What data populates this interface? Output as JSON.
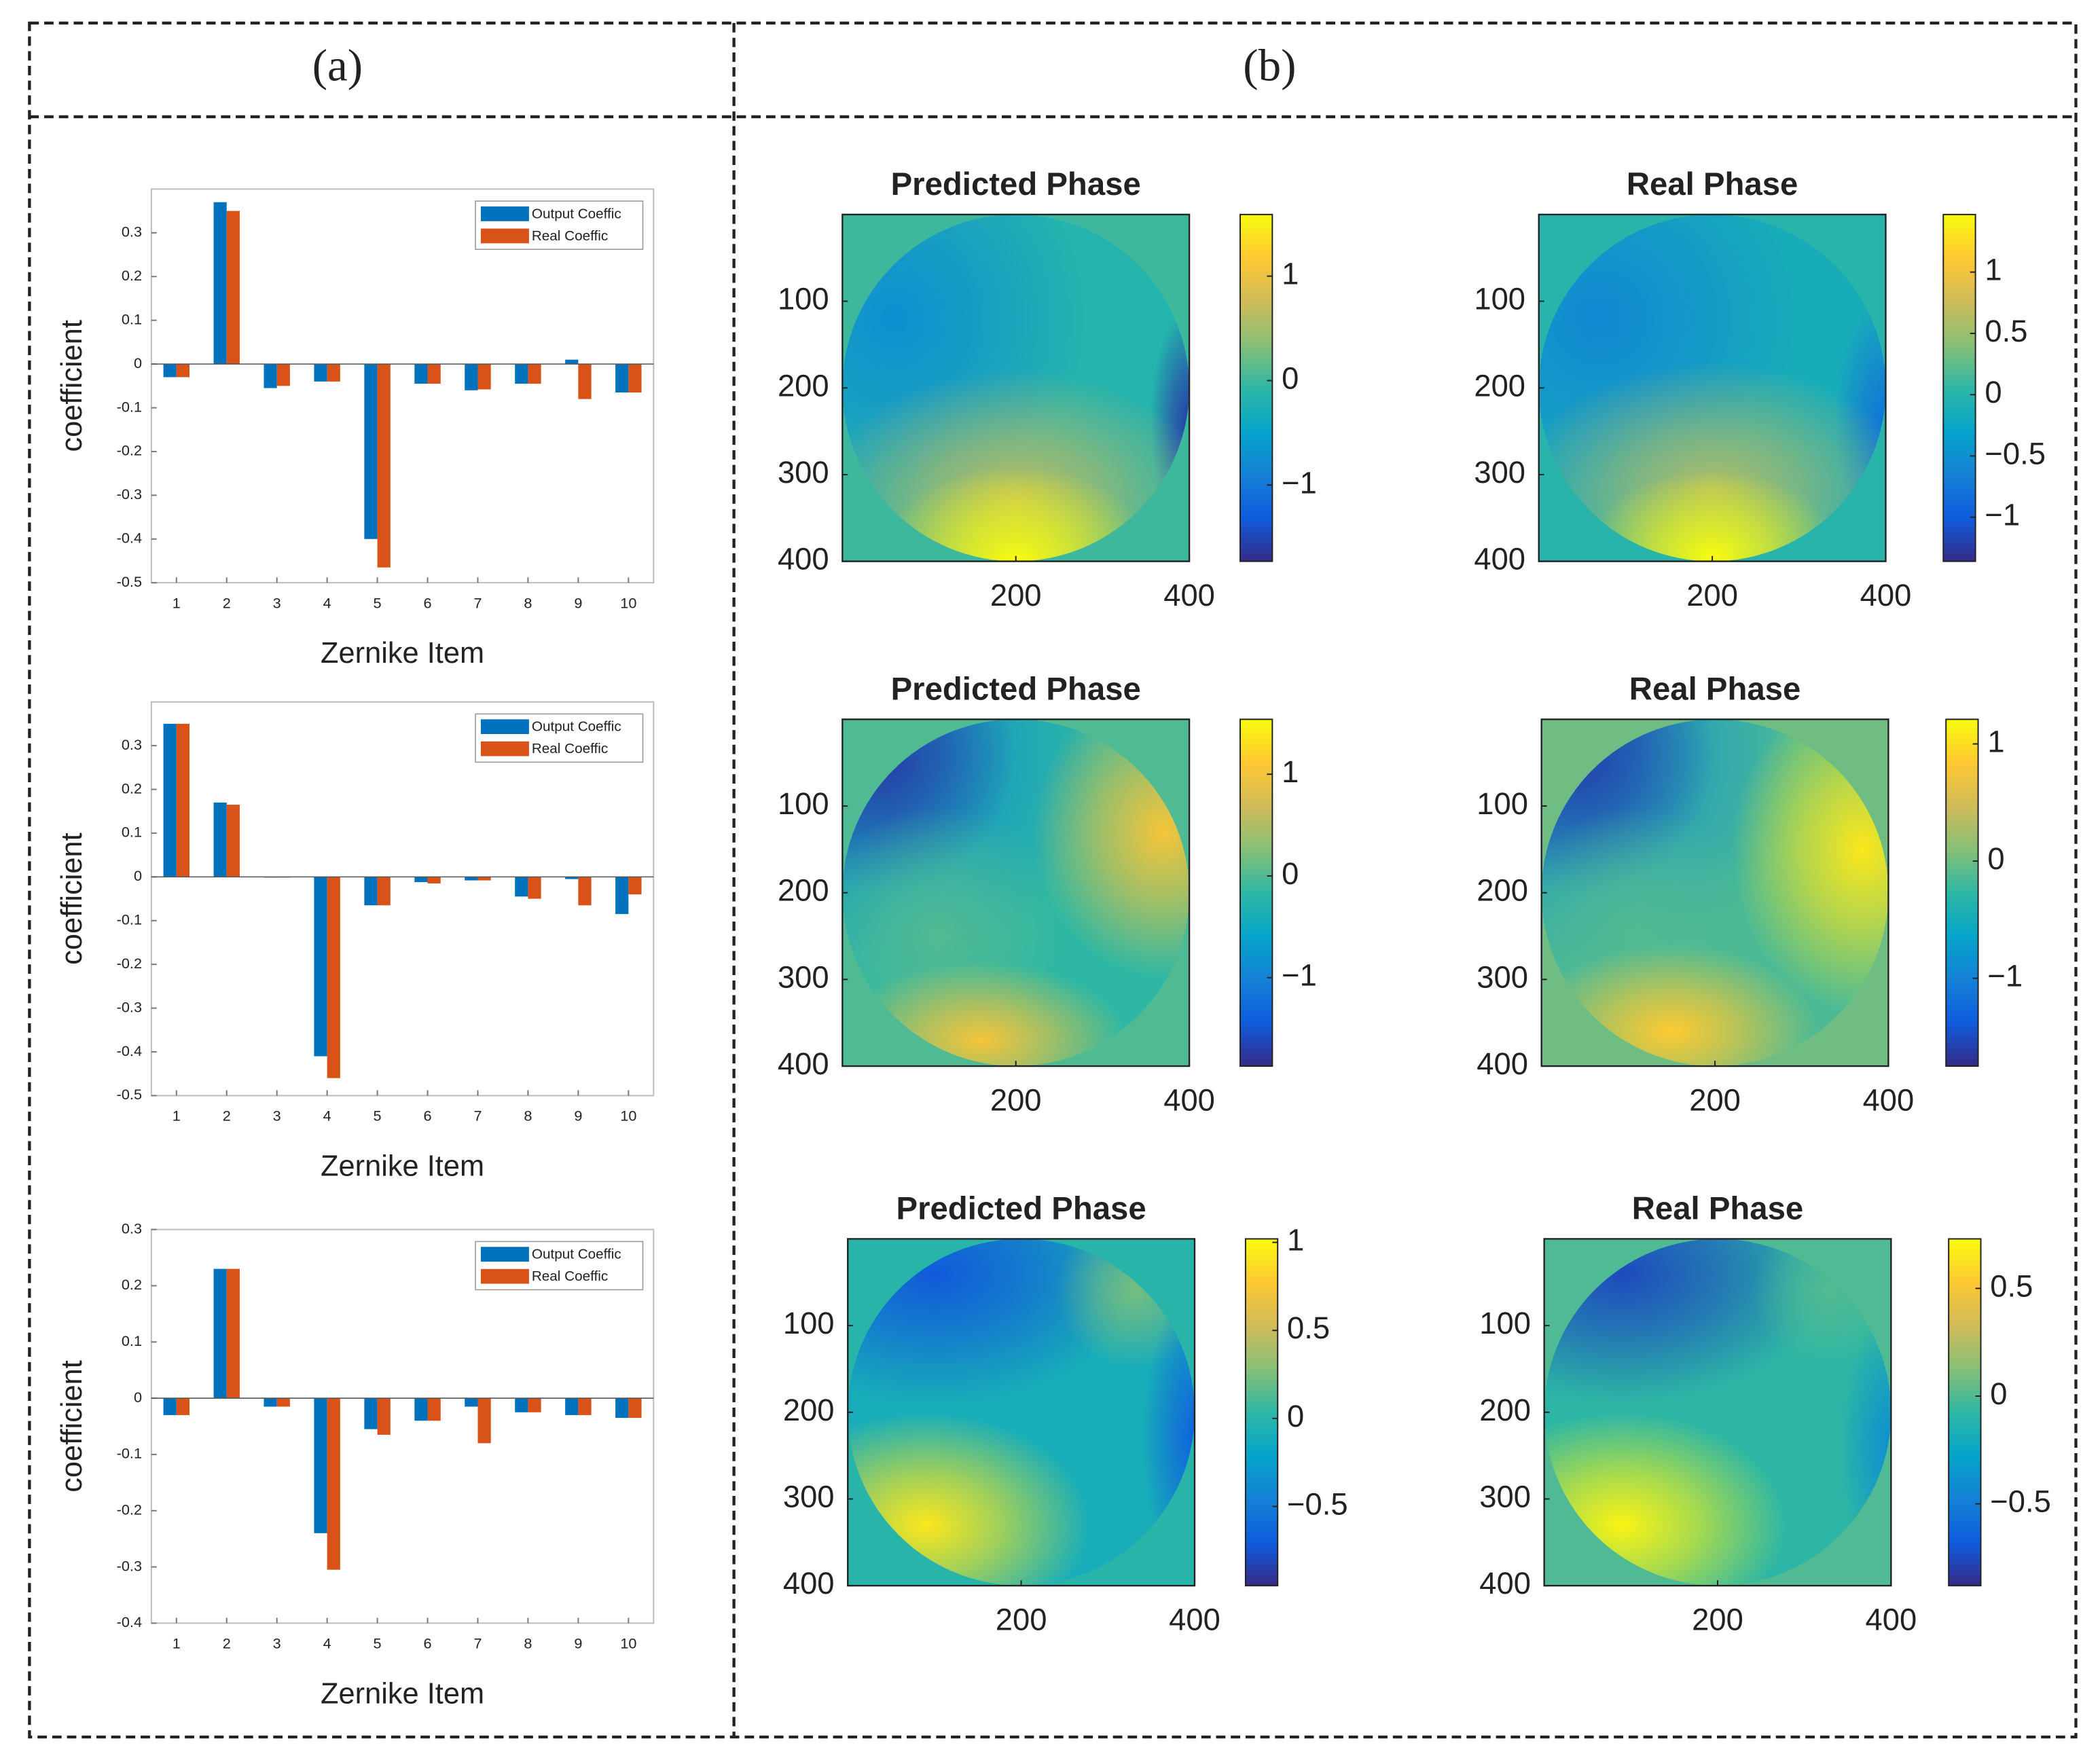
{
  "panel_labels": [
    "(a)",
    "(b)"
  ],
  "chart_data": [
    {
      "type": "bar",
      "xlabel": "Zernike Item",
      "ylabel": "coefficient",
      "legend": "upper right",
      "categories": [
        "1",
        "2",
        "3",
        "4",
        "5",
        "6",
        "7",
        "8",
        "9",
        "10"
      ],
      "series": [
        {
          "name": "Output Coeffic",
          "color": "#0072bd",
          "values": [
            -0.03,
            0.37,
            -0.055,
            -0.04,
            -0.4,
            -0.045,
            -0.06,
            -0.045,
            0.01,
            -0.065
          ]
        },
        {
          "name": "Real Coeffic",
          "color": "#d95319",
          "values": [
            -0.03,
            0.35,
            -0.05,
            -0.04,
            -0.465,
            -0.045,
            -0.058,
            -0.045,
            -0.08,
            -0.065
          ]
        }
      ],
      "ylim": [
        -0.5,
        0.4
      ],
      "yticks": [
        -0.5,
        -0.4,
        -0.3,
        -0.2,
        -0.1,
        0,
        0.1,
        0.2,
        0.3
      ]
    },
    {
      "type": "bar",
      "xlabel": "Zernike Item",
      "ylabel": "coefficient",
      "legend": "upper right",
      "categories": [
        "1",
        "2",
        "3",
        "4",
        "5",
        "6",
        "7",
        "8",
        "9",
        "10"
      ],
      "series": [
        {
          "name": "Output Coeffic",
          "color": "#0072bd",
          "values": [
            0.35,
            0.17,
            0,
            -0.41,
            -0.065,
            -0.012,
            -0.008,
            -0.045,
            -0.005,
            -0.085
          ]
        },
        {
          "name": "Real Coeffic",
          "color": "#d95319",
          "values": [
            0.35,
            0.165,
            0,
            -0.46,
            -0.065,
            -0.015,
            -0.008,
            -0.05,
            -0.065,
            -0.04
          ]
        }
      ],
      "ylim": [
        -0.5,
        0.4
      ],
      "yticks": [
        -0.5,
        -0.4,
        -0.3,
        -0.2,
        -0.1,
        0,
        0.1,
        0.2,
        0.3
      ]
    },
    {
      "type": "bar",
      "xlabel": "Zernike Item",
      "ylabel": "coefficient",
      "legend": "upper right",
      "categories": [
        "1",
        "2",
        "3",
        "4",
        "5",
        "6",
        "7",
        "8",
        "9",
        "10"
      ],
      "series": [
        {
          "name": "Output Coeffic",
          "color": "#0072bd",
          "values": [
            -0.03,
            0.23,
            -0.015,
            -0.24,
            -0.055,
            -0.04,
            -0.015,
            -0.025,
            -0.03,
            -0.035
          ]
        },
        {
          "name": "Real Coeffic",
          "color": "#d95319",
          "values": [
            -0.03,
            0.23,
            -0.015,
            -0.305,
            -0.065,
            -0.04,
            -0.08,
            -0.025,
            -0.03,
            -0.035
          ]
        }
      ],
      "ylim": [
        -0.4,
        0.3
      ],
      "yticks": [
        -0.4,
        -0.3,
        -0.2,
        -0.1,
        0,
        0.1,
        0.2,
        0.3
      ]
    },
    {
      "type": "heatmap",
      "title": "Predicted Phase",
      "colormap": "parula",
      "y_reversed": true,
      "xlim": [
        0,
        400
      ],
      "ylim": [
        0,
        400
      ],
      "xticks": [
        200,
        400
      ],
      "yticks": [
        100,
        200,
        300,
        400
      ],
      "clim": [
        -1.73,
        1.59
      ],
      "cticks": [
        {
          "value": -1,
          "label": "−1"
        },
        0,
        1
      ]
    },
    {
      "type": "heatmap",
      "title": "Real Phase",
      "colormap": "parula",
      "y_reversed": true,
      "xlim": [
        0,
        400
      ],
      "ylim": [
        0,
        400
      ],
      "xticks": [
        200,
        400
      ],
      "yticks": [
        100,
        200,
        300,
        400
      ],
      "clim": [
        -1.36,
        1.47
      ],
      "cticks": [
        {
          "value": -1,
          "label": "−1"
        },
        {
          "value": -0.5,
          "label": "−0.5"
        },
        0,
        0.5,
        1
      ]
    },
    {
      "type": "heatmap",
      "title": "Predicted Phase",
      "colormap": "parula",
      "y_reversed": true,
      "xlim": [
        0,
        400
      ],
      "ylim": [
        0,
        400
      ],
      "xticks": [
        200,
        400
      ],
      "yticks": [
        100,
        200,
        300,
        400
      ],
      "clim": [
        -1.87,
        1.54
      ],
      "cticks": [
        {
          "value": -1,
          "label": "−1"
        },
        0,
        1
      ]
    },
    {
      "type": "heatmap",
      "title": "Real Phase",
      "colormap": "parula",
      "y_reversed": true,
      "xlim": [
        0,
        400
      ],
      "ylim": [
        0,
        400
      ],
      "xticks": [
        200,
        400
      ],
      "yticks": [
        100,
        200,
        300,
        400
      ],
      "clim": [
        -1.75,
        1.21
      ],
      "cticks": [
        {
          "value": -1,
          "label": "−1"
        },
        0,
        1
      ]
    },
    {
      "type": "heatmap",
      "title": "Predicted Phase",
      "colormap": "parula",
      "y_reversed": true,
      "xlim": [
        0,
        400
      ],
      "ylim": [
        0,
        400
      ],
      "xticks": [
        200,
        400
      ],
      "yticks": [
        100,
        200,
        300,
        400
      ],
      "clim": [
        -0.95,
        1.02
      ],
      "cticks": [
        {
          "value": -0.5,
          "label": "−0.5"
        },
        0,
        0.5,
        1
      ]
    },
    {
      "type": "heatmap",
      "title": "Real Phase",
      "colormap": "parula",
      "y_reversed": true,
      "xlim": [
        0,
        400
      ],
      "ylim": [
        0,
        400
      ],
      "xticks": [
        200,
        400
      ],
      "yticks": [
        100,
        200,
        300,
        400
      ],
      "clim": [
        -0.88,
        0.73
      ],
      "cticks": [
        {
          "value": -0.5,
          "label": "−0.5"
        },
        0,
        0.5
      ]
    }
  ]
}
